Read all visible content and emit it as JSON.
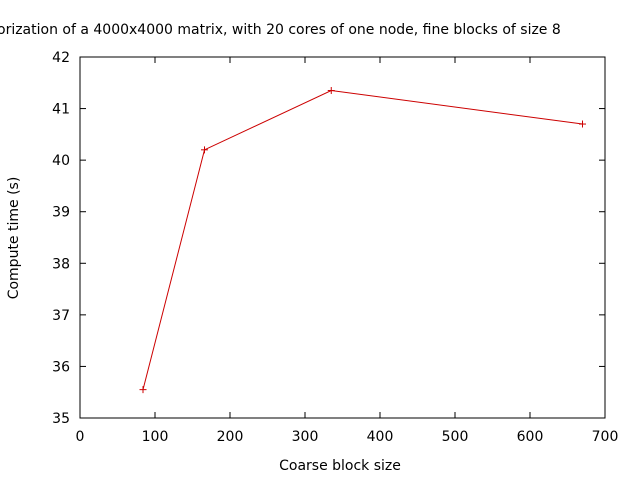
{
  "chart_data": {
    "type": "line",
    "title": "orization of a 4000x4000 matrix, with 20 cores of one node, fine blocks of size 8",
    "xlabel": "Coarse block size",
    "ylabel": "Compute time (s)",
    "xlim": [
      0,
      700
    ],
    "ylim": [
      35,
      42
    ],
    "xticks": [
      0,
      100,
      200,
      300,
      400,
      500,
      600,
      700
    ],
    "yticks": [
      35,
      36,
      37,
      38,
      39,
      40,
      41,
      42
    ],
    "grid": false,
    "legend": "none",
    "series": [
      {
        "color": "#cc0000",
        "marker": "plus",
        "points": [
          {
            "x": 84,
            "y": 35.55
          },
          {
            "x": 166,
            "y": 40.2
          },
          {
            "x": 335,
            "y": 41.35
          },
          {
            "x": 670,
            "y": 40.7
          }
        ]
      }
    ]
  }
}
